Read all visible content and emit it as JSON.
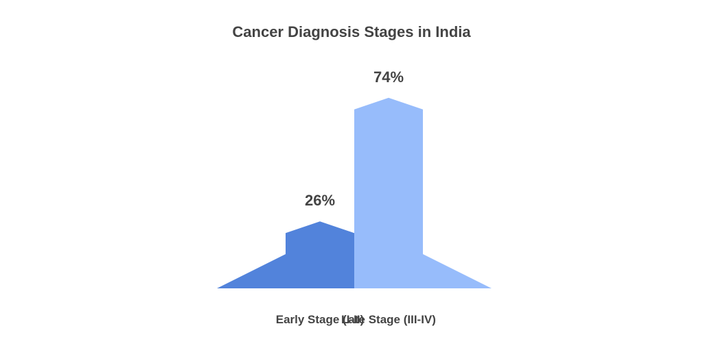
{
  "chart_data": {
    "type": "bar",
    "title": "Cancer Diagnosis Stages in India",
    "categories": [
      "Early Stage (I-II)",
      "Late Stage (III-IV)"
    ],
    "values": [
      26,
      74
    ],
    "value_labels": [
      "26%",
      "74%"
    ],
    "unit": "%",
    "ylim": [
      0,
      80
    ],
    "colors": [
      "#5283DB",
      "#97BCFB"
    ],
    "grid": false,
    "legend": "none"
  }
}
